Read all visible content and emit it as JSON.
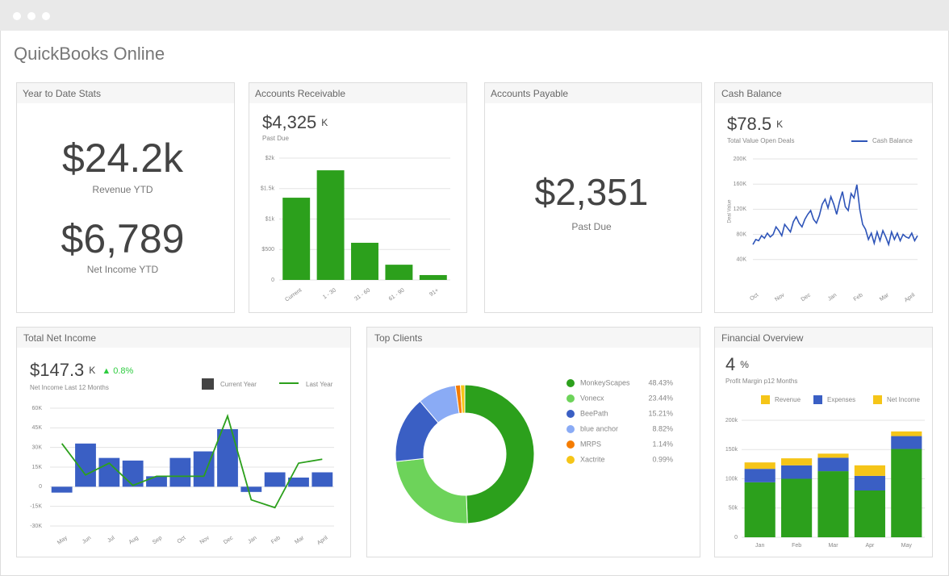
{
  "window": {
    "title": "QuickBooks Online"
  },
  "panels": {
    "ytd": {
      "title": "Year to Date Stats",
      "stats": [
        {
          "value": "$24.2k",
          "label": "Revenue YTD"
        },
        {
          "value": "$6,789",
          "label": "Net Income YTD"
        }
      ]
    },
    "receivable": {
      "title": "Accounts Receivable",
      "amount": "$4,325",
      "unit": "K",
      "caption": "Past Due",
      "chart": {
        "type": "bar",
        "categories": [
          "Current",
          "1 - 30",
          "31 - 60",
          "61 - 90",
          "91+"
        ],
        "values": [
          1350,
          1800,
          610,
          250,
          80
        ],
        "color": "#2ca01c",
        "ylim": [
          0,
          2000
        ],
        "yticks": [
          0,
          {
            "value": 500,
            "label": "$500"
          },
          {
            "value": 1000,
            "label": "$1k"
          },
          {
            "value": 1500,
            "label": "$1.5k"
          },
          {
            "value": 2000,
            "label": "$2k"
          }
        ],
        "grid": true
      }
    },
    "payable": {
      "title": "Accounts Payable",
      "amount": "$2,351",
      "caption": "Past Due"
    },
    "cash": {
      "title": "Cash Balance",
      "amount": "$78.5",
      "unit": "K",
      "caption": "Total Value Open Deals",
      "chart": {
        "type": "line",
        "y_label": "Deal Value",
        "x_labels": [
          "Oct",
          "Nov",
          "Dec",
          "Jan",
          "Feb",
          "Mar",
          "April"
        ],
        "series": [
          {
            "name": "Cash Balance",
            "color": "#2e54b8",
            "values": [
              64000,
              72000,
              70000,
              78000,
              74000,
              82000,
              76000,
              80000,
              92000,
              86000,
              78000,
              96000,
              90000,
              84000,
              100000,
              108000,
              98000,
              92000,
              104000,
              112000,
              118000,
              104000,
              98000,
              110000,
              128000,
              136000,
              122000,
              140000,
              128000,
              112000,
              132000,
              148000,
              124000,
              118000,
              145000,
              138000,
              159000,
              120000,
              96000,
              88000,
              72000,
              82000,
              66000,
              84000,
              70000,
              86000,
              76000,
              64000,
              84000,
              72000,
              82000,
              70000,
              80000,
              76000,
              74000,
              82000,
              70000,
              78000
            ]
          }
        ],
        "ylim": [
          0,
          200000
        ],
        "yticks": [
          {
            "value": 40000,
            "label": "40K"
          },
          {
            "value": 80000,
            "label": "80K"
          },
          {
            "value": 120000,
            "label": "120K"
          },
          {
            "value": 160000,
            "label": "160K"
          },
          {
            "value": 200000,
            "label": "200K"
          }
        ],
        "grid": true
      }
    },
    "net_income": {
      "title": "Total Net Income",
      "amount": "$147.3",
      "unit": "K",
      "change": "▲ 0.8%",
      "caption": "Net Income Last 12 Months",
      "chart": {
        "type": "bar-line",
        "categories": [
          "May",
          "Jun",
          "Jul",
          "Aug",
          "Sep",
          "Oct",
          "Nov",
          "Dec",
          "Jan",
          "Feb",
          "Mar",
          "April"
        ],
        "series": [
          {
            "name": "Current Year",
            "type": "bar",
            "color": "#3a5fc4",
            "legend_color": "#444444",
            "values": [
              -4500,
              33000,
              22000,
              20000,
              8000,
              22000,
              27000,
              44000,
              -4000,
              11000,
              7000,
              11000
            ]
          },
          {
            "name": "Last Year",
            "type": "line",
            "color": "#2ca01c",
            "values": [
              33000,
              9000,
              18000,
              1000,
              8000,
              8000,
              8000,
              54000,
              -10000,
              -16000,
              18000,
              21000
            ]
          }
        ],
        "ylim": [
          -30000,
          60000
        ],
        "yticks": [
          {
            "value": -30000,
            "label": "-30K"
          },
          {
            "value": -15000,
            "label": "-15K"
          },
          0,
          {
            "value": 15000,
            "label": "15K"
          },
          {
            "value": 30000,
            "label": "30K"
          },
          {
            "value": 45000,
            "label": "45K"
          },
          {
            "value": 60000,
            "label": "60K"
          }
        ],
        "grid": true
      }
    },
    "clients": {
      "title": "Top Clients",
      "chart": {
        "type": "donut",
        "categories": [
          "MonkeyScapes",
          "Vonecx",
          "BeePath",
          "blue anchor",
          "MRPS",
          "Xactrite"
        ],
        "values": [
          48.43,
          23.44,
          15.21,
          8.82,
          1.14,
          0.99
        ],
        "value_labels": [
          "48.43%",
          "23.44%",
          "15.21%",
          "8.82%",
          "1.14%",
          "0.99%"
        ],
        "colors": [
          "#2ca01c",
          "#6dd35a",
          "#3a5fc4",
          "#8aabf5",
          "#f57c00",
          "#f5c518"
        ]
      }
    },
    "financial": {
      "title": "Financial Overview",
      "amount": "4",
      "unit": "%",
      "caption": "Profit Margin p12 Months",
      "chart": {
        "type": "stacked-bar",
        "categories": [
          "Jan",
          "Feb",
          "Mar",
          "Apr",
          "May"
        ],
        "series": [
          {
            "name": "Revenue",
            "color": "#2ca01c",
            "legend_color": "#f5c518",
            "values": [
              94000,
              100000,
              113000,
              80000,
              151000
            ]
          },
          {
            "name": "Expenses",
            "color": "#3a5fc4",
            "legend_color": "#3a5fc4",
            "values": [
              23000,
              23000,
              23000,
              25000,
              22000
            ]
          },
          {
            "name": "Net Income",
            "color": "#f5c518",
            "legend_color": "#f5c518",
            "values": [
              11000,
              12000,
              7000,
              18000,
              8000
            ]
          }
        ],
        "ylim": [
          0,
          200000
        ],
        "yticks": [
          0,
          {
            "value": 50000,
            "label": "50k"
          },
          {
            "value": 100000,
            "label": "100k"
          },
          {
            "value": 150000,
            "label": "150k"
          },
          {
            "value": 200000,
            "label": "200k"
          }
        ],
        "grid": true
      }
    }
  }
}
